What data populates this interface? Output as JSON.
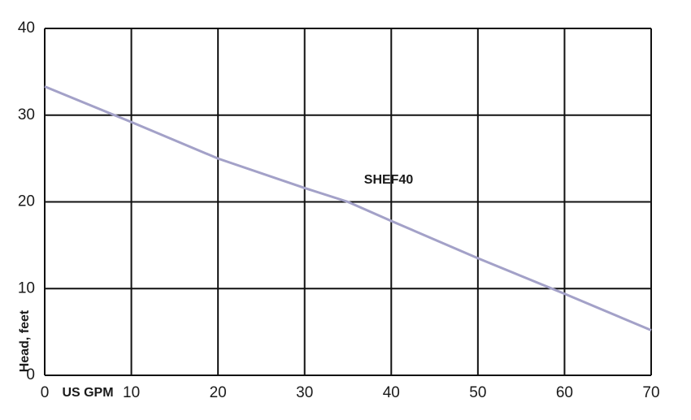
{
  "chart_data": {
    "type": "line",
    "x_label": "US GPM",
    "y_label": "Head, feet",
    "x": [
      0,
      10,
      20,
      30,
      35,
      40,
      50,
      60,
      70
    ],
    "series": [
      {
        "name": "SHEF40",
        "color": "#a3a1c8",
        "values": [
          33.3,
          29.2,
          25.0,
          21.6,
          20.0,
          17.8,
          13.5,
          9.4,
          5.2
        ]
      }
    ],
    "xlim": [
      0,
      70
    ],
    "xticks": [
      0,
      10,
      20,
      30,
      40,
      50,
      60,
      70
    ],
    "ylim": [
      0,
      40
    ],
    "yticks": [
      0,
      10,
      20,
      30,
      40
    ],
    "grid": true
  }
}
